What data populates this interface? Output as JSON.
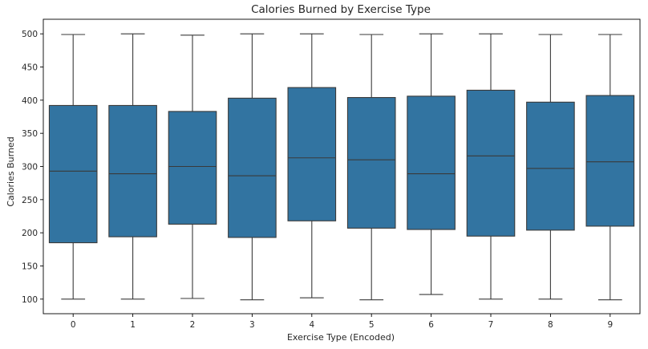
{
  "chart_data": {
    "type": "box",
    "title": "Calories Burned by Exercise Type",
    "xlabel": "Exercise Type (Encoded)",
    "ylabel": "Calories Burned",
    "categories": [
      "0",
      "1",
      "2",
      "3",
      "4",
      "5",
      "6",
      "7",
      "8",
      "9"
    ],
    "yticks": [
      100,
      150,
      200,
      250,
      300,
      350,
      400,
      450,
      500
    ],
    "ylim": [
      78,
      522
    ],
    "box_color": "#3274a1",
    "line_color": "#3a3a3a",
    "boxes": [
      {
        "category": "0",
        "min": 100,
        "q1": 185,
        "median": 293,
        "q3": 392,
        "max": 499
      },
      {
        "category": "1",
        "min": 100,
        "q1": 194,
        "median": 289,
        "q3": 392,
        "max": 500
      },
      {
        "category": "2",
        "min": 101,
        "q1": 213,
        "median": 300,
        "q3": 383,
        "max": 498
      },
      {
        "category": "3",
        "min": 99,
        "q1": 193,
        "median": 286,
        "q3": 403,
        "max": 500
      },
      {
        "category": "4",
        "min": 102,
        "q1": 218,
        "median": 313,
        "q3": 419,
        "max": 500
      },
      {
        "category": "5",
        "min": 99,
        "q1": 207,
        "median": 310,
        "q3": 404,
        "max": 499
      },
      {
        "category": "6",
        "min": 107,
        "q1": 205,
        "median": 289,
        "q3": 406,
        "max": 500
      },
      {
        "category": "7",
        "min": 100,
        "q1": 195,
        "median": 316,
        "q3": 415,
        "max": 500
      },
      {
        "category": "8",
        "min": 100,
        "q1": 204,
        "median": 297,
        "q3": 397,
        "max": 499
      },
      {
        "category": "9",
        "min": 99,
        "q1": 210,
        "median": 307,
        "q3": 407,
        "max": 499
      }
    ]
  }
}
